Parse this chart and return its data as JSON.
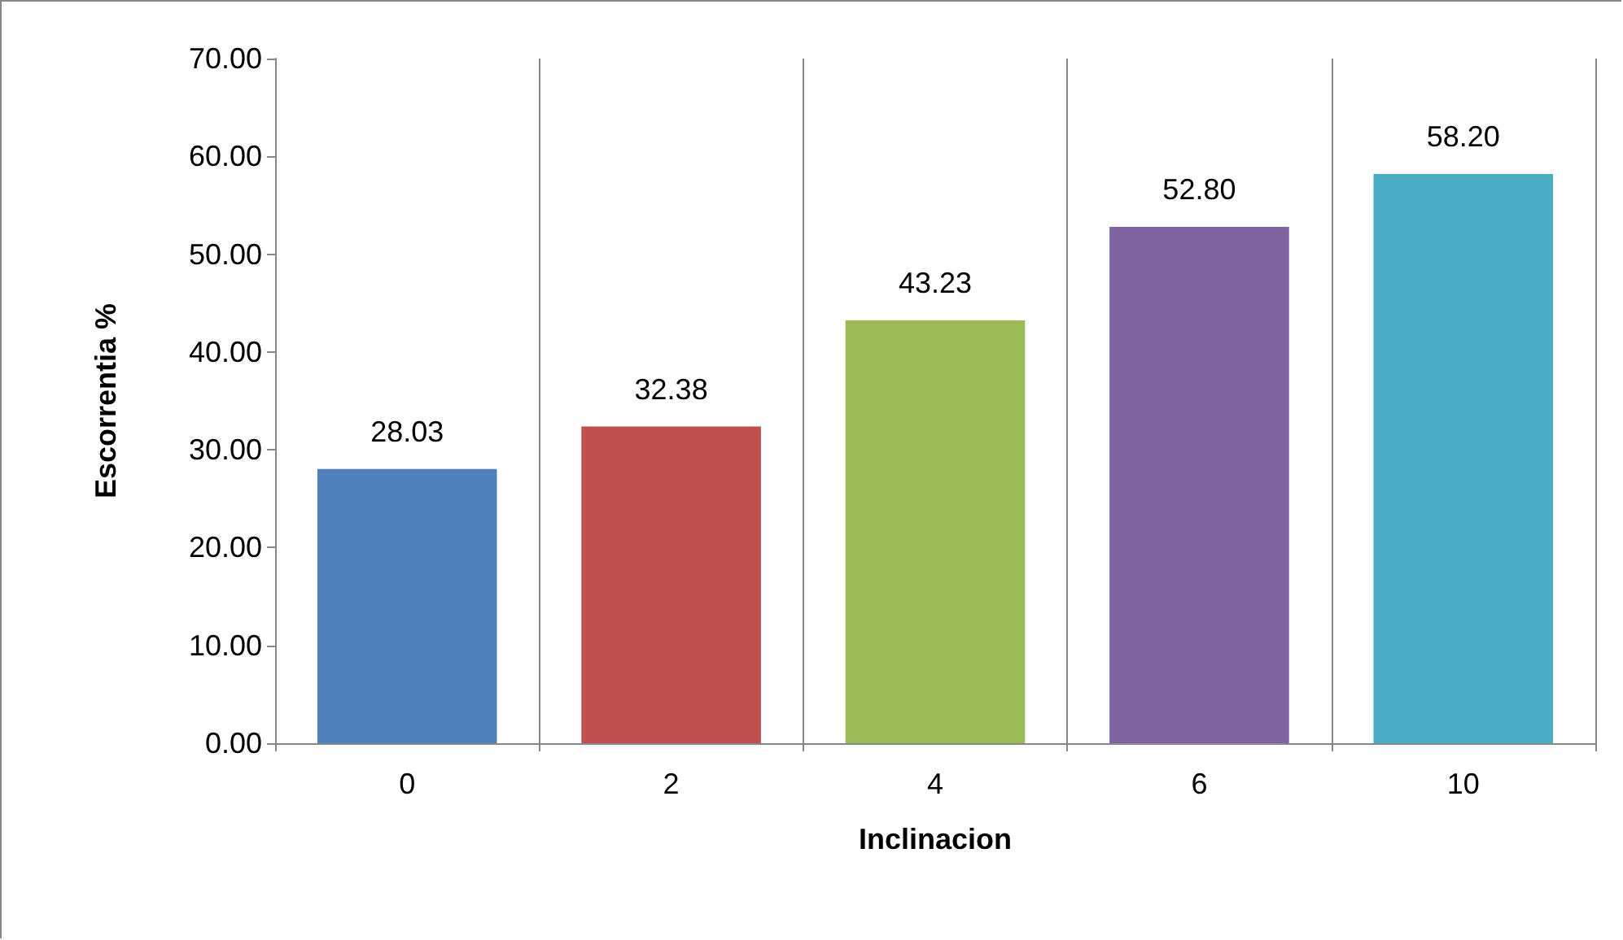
{
  "chart_data": {
    "type": "bar",
    "xlabel": "Inclinacion",
    "ylabel": "Escorrentia %",
    "categories": [
      "0",
      "2",
      "4",
      "6",
      "10"
    ],
    "values": [
      28.03,
      32.38,
      43.23,
      52.8,
      58.2
    ],
    "value_labels": [
      "28.03",
      "32.38",
      "43.23",
      "52.80",
      "58.20"
    ],
    "colors": [
      "#4f81bd",
      "#c0504d",
      "#9bbb59",
      "#8064a2",
      "#4bacc6"
    ],
    "ylim": [
      0,
      70
    ],
    "yticks": [
      {
        "value": 0,
        "label": "0.00"
      },
      {
        "value": 10,
        "label": "10.00"
      },
      {
        "value": 20,
        "label": "20.00"
      },
      {
        "value": 30,
        "label": "30.00"
      },
      {
        "value": 40,
        "label": "40.00"
      },
      {
        "value": 50,
        "label": "50.00"
      },
      {
        "value": 60,
        "label": "60.00"
      },
      {
        "value": 70,
        "label": "70.00"
      }
    ],
    "grid": "x"
  }
}
